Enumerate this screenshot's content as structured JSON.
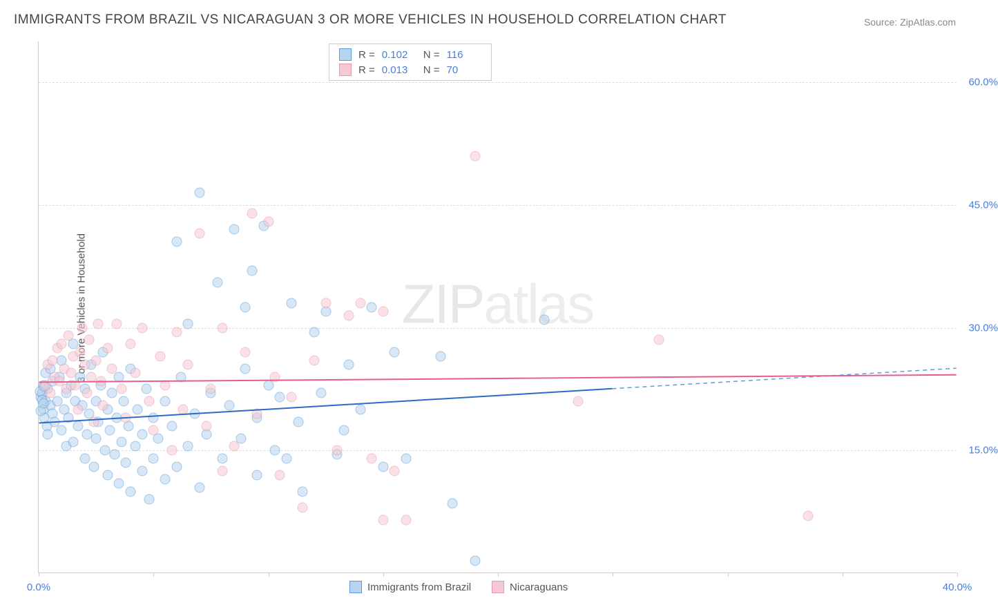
{
  "title": "IMMIGRANTS FROM BRAZIL VS NICARAGUAN 3 OR MORE VEHICLES IN HOUSEHOLD CORRELATION CHART",
  "source": "Source: ZipAtlas.com",
  "watermark_strong": "ZIP",
  "watermark_light": "atlas",
  "y_axis_label": "3 or more Vehicles in Household",
  "chart": {
    "type": "scatter",
    "xlim": [
      0,
      40
    ],
    "ylim": [
      0,
      65
    ],
    "x_ticks": [
      0,
      5,
      10,
      15,
      20,
      25,
      30,
      35,
      40
    ],
    "x_tick_labels_shown": {
      "0": "0.0%",
      "40": "40.0%"
    },
    "y_ticks": [
      15,
      30,
      45,
      60
    ],
    "y_tick_labels": [
      "15.0%",
      "30.0%",
      "45.0%",
      "60.0%"
    ],
    "grid_color": "#dddddd",
    "axis_color": "#cccccc",
    "background_color": "#ffffff",
    "marker_radius": 7.5,
    "marker_opacity": 0.55
  },
  "series": [
    {
      "name": "Immigrants from Brazil",
      "fill": "#b8d4f0",
      "stroke": "#5a9bd5",
      "trend_color": "#2e6bc7",
      "R": "0.102",
      "N": "116",
      "trend": {
        "x0": 0,
        "y0": 18.3,
        "x1": 25,
        "y1": 22.5,
        "x_extent": 40,
        "y_extent": 25.0
      },
      "points": [
        [
          0.1,
          21.5
        ],
        [
          0.15,
          22.0
        ],
        [
          0.2,
          20.0
        ],
        [
          0.2,
          23.0
        ],
        [
          0.25,
          19.0
        ],
        [
          0.3,
          21.0
        ],
        [
          0.3,
          24.5
        ],
        [
          0.35,
          18.0
        ],
        [
          0.4,
          22.5
        ],
        [
          0.4,
          17.0
        ],
        [
          0.5,
          20.5
        ],
        [
          0.5,
          25.0
        ],
        [
          0.6,
          19.5
        ],
        [
          0.6,
          23.5
        ],
        [
          0.7,
          18.5
        ],
        [
          0.8,
          21.0
        ],
        [
          0.9,
          24.0
        ],
        [
          1.0,
          17.5
        ],
        [
          1.0,
          26.0
        ],
        [
          1.1,
          20.0
        ],
        [
          1.2,
          22.0
        ],
        [
          1.2,
          15.5
        ],
        [
          1.3,
          19.0
        ],
        [
          1.4,
          23.0
        ],
        [
          1.5,
          28.0
        ],
        [
          1.5,
          16.0
        ],
        [
          1.6,
          21.0
        ],
        [
          1.7,
          18.0
        ],
        [
          1.8,
          24.0
        ],
        [
          1.9,
          20.5
        ],
        [
          2.0,
          14.0
        ],
        [
          2.0,
          22.5
        ],
        [
          2.1,
          17.0
        ],
        [
          2.2,
          19.5
        ],
        [
          2.3,
          25.5
        ],
        [
          2.4,
          13.0
        ],
        [
          2.5,
          21.0
        ],
        [
          2.5,
          16.5
        ],
        [
          2.6,
          18.5
        ],
        [
          2.7,
          23.0
        ],
        [
          2.8,
          27.0
        ],
        [
          2.9,
          15.0
        ],
        [
          3.0,
          20.0
        ],
        [
          3.0,
          12.0
        ],
        [
          3.1,
          17.5
        ],
        [
          3.2,
          22.0
        ],
        [
          3.3,
          14.5
        ],
        [
          3.4,
          19.0
        ],
        [
          3.5,
          11.0
        ],
        [
          3.5,
          24.0
        ],
        [
          3.6,
          16.0
        ],
        [
          3.7,
          21.0
        ],
        [
          3.8,
          13.5
        ],
        [
          3.9,
          18.0
        ],
        [
          4.0,
          10.0
        ],
        [
          4.0,
          25.0
        ],
        [
          4.2,
          15.5
        ],
        [
          4.3,
          20.0
        ],
        [
          4.5,
          12.5
        ],
        [
          4.5,
          17.0
        ],
        [
          4.7,
          22.5
        ],
        [
          4.8,
          9.0
        ],
        [
          5.0,
          19.0
        ],
        [
          5.0,
          14.0
        ],
        [
          5.2,
          16.5
        ],
        [
          5.5,
          11.5
        ],
        [
          5.5,
          21.0
        ],
        [
          5.8,
          18.0
        ],
        [
          6.0,
          40.5
        ],
        [
          6.0,
          13.0
        ],
        [
          6.2,
          24.0
        ],
        [
          6.5,
          15.5
        ],
        [
          6.5,
          30.5
        ],
        [
          6.8,
          19.5
        ],
        [
          7.0,
          46.5
        ],
        [
          7.0,
          10.5
        ],
        [
          7.3,
          17.0
        ],
        [
          7.5,
          22.0
        ],
        [
          7.8,
          35.5
        ],
        [
          8.0,
          14.0
        ],
        [
          8.3,
          20.5
        ],
        [
          8.5,
          42.0
        ],
        [
          8.8,
          16.5
        ],
        [
          9.0,
          25.0
        ],
        [
          9.0,
          32.5
        ],
        [
          9.3,
          37.0
        ],
        [
          9.5,
          19.0
        ],
        [
          9.5,
          12.0
        ],
        [
          9.8,
          42.5
        ],
        [
          10.0,
          23.0
        ],
        [
          10.3,
          15.0
        ],
        [
          10.5,
          21.5
        ],
        [
          10.8,
          14.0
        ],
        [
          11.0,
          33.0
        ],
        [
          11.3,
          18.5
        ],
        [
          11.5,
          10.0
        ],
        [
          12.0,
          29.5
        ],
        [
          12.3,
          22.0
        ],
        [
          12.5,
          32.0
        ],
        [
          13.0,
          14.5
        ],
        [
          13.3,
          17.5
        ],
        [
          13.5,
          25.5
        ],
        [
          14.0,
          20.0
        ],
        [
          14.5,
          32.5
        ],
        [
          15.0,
          13.0
        ],
        [
          15.5,
          27.0
        ],
        [
          16.0,
          14.0
        ],
        [
          17.5,
          26.5
        ],
        [
          18.0,
          8.5
        ],
        [
          19.0,
          1.5
        ],
        [
          22.0,
          31.0
        ],
        [
          0.05,
          22.2
        ],
        [
          0.1,
          19.8
        ],
        [
          0.15,
          21.2
        ],
        [
          0.2,
          20.8
        ],
        [
          0.25,
          22.8
        ]
      ]
    },
    {
      "name": "Nicaraguans",
      "fill": "#f6c9d4",
      "stroke": "#e597ab",
      "trend_color": "#e85d8c",
      "R": "0.013",
      "N": "70",
      "trend": {
        "x0": 0,
        "y0": 23.3,
        "x1": 40,
        "y1": 24.2,
        "x_extent": 40,
        "y_extent": 24.2
      },
      "points": [
        [
          0.3,
          23.0
        ],
        [
          0.4,
          25.5
        ],
        [
          0.5,
          22.0
        ],
        [
          0.6,
          26.0
        ],
        [
          0.7,
          24.0
        ],
        [
          0.8,
          27.5
        ],
        [
          0.9,
          23.5
        ],
        [
          1.0,
          28.0
        ],
        [
          1.1,
          25.0
        ],
        [
          1.2,
          22.5
        ],
        [
          1.3,
          29.0
        ],
        [
          1.4,
          24.5
        ],
        [
          1.5,
          26.5
        ],
        [
          1.6,
          23.0
        ],
        [
          1.7,
          20.0
        ],
        [
          1.8,
          27.0
        ],
        [
          1.9,
          30.0
        ],
        [
          2.0,
          25.5
        ],
        [
          2.1,
          22.0
        ],
        [
          2.2,
          28.5
        ],
        [
          2.3,
          24.0
        ],
        [
          2.4,
          18.5
        ],
        [
          2.5,
          26.0
        ],
        [
          2.6,
          30.5
        ],
        [
          2.7,
          23.5
        ],
        [
          2.8,
          20.5
        ],
        [
          3.0,
          27.5
        ],
        [
          3.2,
          25.0
        ],
        [
          3.4,
          30.5
        ],
        [
          3.6,
          22.5
        ],
        [
          3.8,
          19.0
        ],
        [
          4.0,
          28.0
        ],
        [
          4.2,
          24.5
        ],
        [
          4.5,
          30.0
        ],
        [
          4.8,
          21.0
        ],
        [
          5.0,
          17.5
        ],
        [
          5.3,
          26.5
        ],
        [
          5.5,
          23.0
        ],
        [
          5.8,
          15.0
        ],
        [
          6.0,
          29.5
        ],
        [
          6.3,
          20.0
        ],
        [
          6.5,
          25.5
        ],
        [
          7.0,
          41.5
        ],
        [
          7.3,
          18.0
        ],
        [
          7.5,
          22.5
        ],
        [
          8.0,
          12.5
        ],
        [
          8.0,
          30.0
        ],
        [
          8.5,
          15.5
        ],
        [
          9.0,
          27.0
        ],
        [
          9.3,
          44.0
        ],
        [
          9.5,
          19.5
        ],
        [
          10.0,
          43.0
        ],
        [
          10.3,
          24.0
        ],
        [
          10.5,
          12.0
        ],
        [
          11.0,
          21.5
        ],
        [
          11.5,
          8.0
        ],
        [
          12.0,
          26.0
        ],
        [
          12.5,
          33.0
        ],
        [
          13.0,
          15.0
        ],
        [
          13.5,
          31.5
        ],
        [
          14.0,
          33.0
        ],
        [
          14.5,
          14.0
        ],
        [
          15.0,
          32.0
        ],
        [
          15.5,
          12.5
        ],
        [
          16.0,
          6.5
        ],
        [
          19.0,
          51.0
        ],
        [
          23.5,
          21.0
        ],
        [
          27.0,
          28.5
        ],
        [
          33.5,
          7.0
        ],
        [
          15.0,
          6.5
        ]
      ]
    }
  ],
  "stats_legend": {
    "r_label": "R =",
    "n_label": "N ="
  },
  "bottom_legend": [
    "Immigrants from Brazil",
    "Nicaraguans"
  ]
}
